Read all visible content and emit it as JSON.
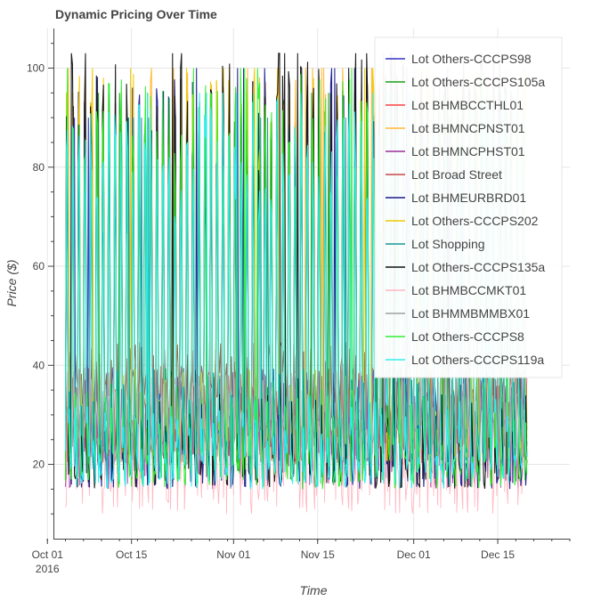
{
  "chart_data": {
    "type": "line",
    "title": "Dynamic Pricing Over Time",
    "xlabel": "Time",
    "ylabel": "Price ($)",
    "xlim": [
      "2016-10-02",
      "2016-12-27"
    ],
    "ylim": [
      5,
      108
    ],
    "x_ticks": [
      {
        "date": "2016-10-01",
        "label": "Oct 01",
        "sublabel": "2016"
      },
      {
        "date": "2016-10-15",
        "label": "Oct 15"
      },
      {
        "date": "2016-11-01",
        "label": "Nov 01"
      },
      {
        "date": "2016-11-15",
        "label": "Nov 15"
      },
      {
        "date": "2016-12-01",
        "label": "Dec 01"
      },
      {
        "date": "2016-12-15",
        "label": "Dec 15"
      }
    ],
    "y_ticks": [
      20,
      40,
      60,
      80,
      100
    ],
    "grid": true,
    "legend_position": "top-right",
    "date_range": [
      "2016-10-04",
      "2016-12-19"
    ],
    "series": [
      {
        "name": "Lot Others-CCCPS98",
        "color": "#3232c8",
        "peak": 90,
        "low": 20,
        "style": "spiky"
      },
      {
        "name": "Lot Others-CCCPS105a",
        "color": "#1a9e1a",
        "peak": 95,
        "low": 20,
        "style": "spiky"
      },
      {
        "name": "Lot BHMBCCTHL01",
        "color": "#ff4040",
        "peak": 40,
        "low": 20,
        "style": "low"
      },
      {
        "name": "Lot BHMNCPNST01",
        "color": "#ffb830",
        "peak": 100,
        "low": 20,
        "style": "spiky"
      },
      {
        "name": "Lot BHMNCPHST01",
        "color": "#9b2f9b",
        "peak": 40,
        "low": 15,
        "style": "low"
      },
      {
        "name": "Lot Broad Street",
        "color": "#c84646",
        "peak": 45,
        "low": 20,
        "style": "low"
      },
      {
        "name": "Lot BHMEURBRD01",
        "color": "#1a1a8c",
        "peak": 100,
        "low": 15,
        "style": "spiky"
      },
      {
        "name": "Lot Others-CCCPS202",
        "color": "#f0c800",
        "peak": 100,
        "low": 20,
        "style": "spiky"
      },
      {
        "name": "Lot Shopping",
        "color": "#1a9696",
        "peak": 90,
        "low": 20,
        "style": "spiky"
      },
      {
        "name": "Lot Others-CCCPS135a",
        "color": "#111111",
        "peak": 103,
        "low": 15,
        "style": "spiky"
      },
      {
        "name": "Lot BHMBCCMKT01",
        "color": "#ffb6c1",
        "peak": 40,
        "low": 10,
        "style": "low"
      },
      {
        "name": "Lot BHMMBMMBX01",
        "color": "#a0a0a0",
        "peak": 35,
        "low": 20,
        "style": "low"
      },
      {
        "name": "Lot Others-CCCPS8",
        "color": "#33ee33",
        "peak": 100,
        "low": 15,
        "style": "spiky"
      },
      {
        "name": "Lot Others-CCCPS119a",
        "color": "#33eeee",
        "peak": 95,
        "low": 15,
        "style": "spiky"
      }
    ]
  }
}
